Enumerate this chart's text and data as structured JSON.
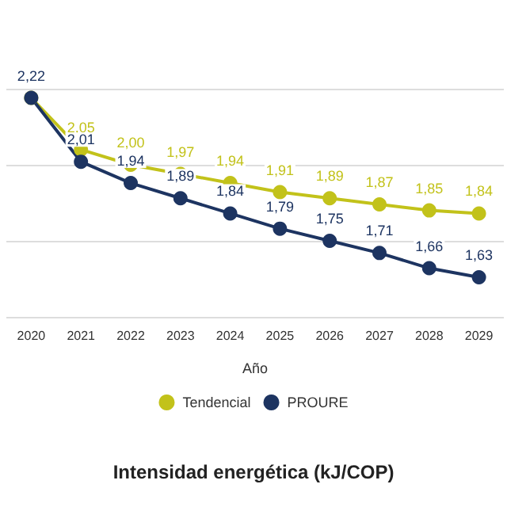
{
  "chart_data": {
    "type": "line",
    "title": "Intensidad energética (kJ/COP)",
    "xlabel": "Año",
    "categories": [
      "2020",
      "2021",
      "2022",
      "2023",
      "2024",
      "2025",
      "2026",
      "2027",
      "2028",
      "2029"
    ],
    "series": [
      {
        "name": "Tendencial",
        "color": "#c2c21a",
        "values": [
          2.22,
          2.05,
          2.0,
          1.97,
          1.94,
          1.91,
          1.89,
          1.87,
          1.85,
          1.84
        ],
        "value_labels": [
          null,
          "2,05",
          "2,00",
          "1,97",
          "1,94",
          "1,91",
          "1,89",
          "1,87",
          "1,85",
          "1,84"
        ]
      },
      {
        "name": "PROURE",
        "color": "#1d3461",
        "values": [
          2.22,
          2.01,
          1.94,
          1.89,
          1.84,
          1.79,
          1.75,
          1.71,
          1.66,
          1.63
        ],
        "value_labels": [
          "2,22",
          "2,01",
          "1,94",
          "1,89",
          "1,84",
          "1,79",
          "1,75",
          "1,71",
          "1,66",
          "1,63"
        ]
      }
    ],
    "ylim": [
      1.5,
      2.25
    ],
    "yticks": [
      {
        "value": 1.5,
        "label": null
      },
      {
        "value": 1.75,
        "label": null
      },
      {
        "value": 2,
        "label": null
      },
      {
        "value": 2.25,
        "label": null
      }
    ],
    "tick_labels": "x",
    "grid": "y",
    "legend": "bottom",
    "marker": "circle",
    "line_style": "solid"
  }
}
